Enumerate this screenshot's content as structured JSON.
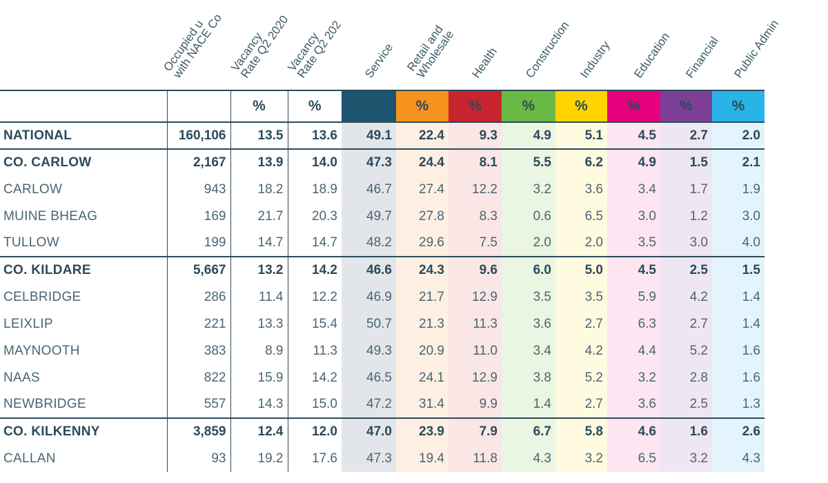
{
  "colors": {
    "header_text": "#3b5a68",
    "rule": "#2b4a5a",
    "service": "#1d5570",
    "retail": "#f7921e",
    "health": "#c8242f",
    "construction": "#6ab945",
    "industry": "#ffd400",
    "education": "#e6007e",
    "financial": "#7d3f96",
    "public_admin": "#29b4e8"
  },
  "columns": [
    {
      "key": "occupied",
      "label": "Occupied u\nwith NACE Co",
      "unit": ""
    },
    {
      "key": "vac2020",
      "label": "Vacancy\nRate Q2 2020",
      "unit": "%"
    },
    {
      "key": "vac2021",
      "label": "Vacancy\nRate Q2 202",
      "unit": "%"
    },
    {
      "key": "service",
      "label": "Service",
      "unit": "%"
    },
    {
      "key": "retail",
      "label": "Retail and\nWholesale",
      "unit": "%"
    },
    {
      "key": "health",
      "label": "Health",
      "unit": "%"
    },
    {
      "key": "construction",
      "label": "Construction",
      "unit": "%"
    },
    {
      "key": "industry",
      "label": "Industry",
      "unit": "%"
    },
    {
      "key": "education",
      "label": "Education",
      "unit": "%"
    },
    {
      "key": "financial",
      "label": "Financial",
      "unit": "%"
    },
    {
      "key": "public_admin",
      "label": "Public Admin",
      "unit": "%"
    }
  ],
  "rows": [
    {
      "name": "NATIONAL",
      "values": [
        "160,106",
        "13.5",
        "13.6",
        "49.1",
        "22.4",
        "9.3",
        "4.9",
        "5.1",
        "4.5",
        "2.7",
        "2.0"
      ]
    },
    {
      "name": "CO. CARLOW",
      "values": [
        "2,167",
        "13.9",
        "14.0",
        "47.3",
        "24.4",
        "8.1",
        "5.5",
        "6.2",
        "4.9",
        "1.5",
        "2.1"
      ]
    },
    {
      "name": "CARLOW",
      "values": [
        "943",
        "18.2",
        "18.9",
        "46.7",
        "27.4",
        "12.2",
        "3.2",
        "3.6",
        "3.4",
        "1.7",
        "1.9"
      ]
    },
    {
      "name": "MUINE BHEAG",
      "values": [
        "169",
        "21.7",
        "20.3",
        "49.7",
        "27.8",
        "8.3",
        "0.6",
        "6.5",
        "3.0",
        "1.2",
        "3.0"
      ]
    },
    {
      "name": "TULLOW",
      "values": [
        "199",
        "14.7",
        "14.7",
        "48.2",
        "29.6",
        "7.5",
        "2.0",
        "2.0",
        "3.5",
        "3.0",
        "4.0"
      ]
    },
    {
      "name": "CO. KILDARE",
      "values": [
        "5,667",
        "13.2",
        "14.2",
        "46.6",
        "24.3",
        "9.6",
        "6.0",
        "5.0",
        "4.5",
        "2.5",
        "1.5"
      ]
    },
    {
      "name": "CELBRIDGE",
      "values": [
        "286",
        "11.4",
        "12.2",
        "46.9",
        "21.7",
        "12.9",
        "3.5",
        "3.5",
        "5.9",
        "4.2",
        "1.4"
      ]
    },
    {
      "name": "LEIXLIP",
      "values": [
        "221",
        "13.3",
        "15.4",
        "50.7",
        "21.3",
        "11.3",
        "3.6",
        "2.7",
        "6.3",
        "2.7",
        "1.4"
      ]
    },
    {
      "name": "MAYNOOTH",
      "values": [
        "383",
        "8.9",
        "11.3",
        "49.3",
        "20.9",
        "11.0",
        "3.4",
        "4.2",
        "4.4",
        "5.2",
        "1.6"
      ]
    },
    {
      "name": "NAAS",
      "values": [
        "822",
        "15.9",
        "14.2",
        "46.5",
        "24.1",
        "12.9",
        "3.8",
        "5.2",
        "3.2",
        "2.8",
        "1.6"
      ]
    },
    {
      "name": "NEWBRIDGE",
      "values": [
        "557",
        "14.3",
        "15.0",
        "47.2",
        "31.4",
        "9.9",
        "1.4",
        "2.7",
        "3.6",
        "2.5",
        "1.3"
      ]
    },
    {
      "name": "CO. KILKENNY",
      "values": [
        "3,859",
        "12.4",
        "12.0",
        "47.0",
        "23.9",
        "7.9",
        "6.7",
        "5.8",
        "4.6",
        "1.6",
        "2.6"
      ]
    },
    {
      "name": "CALLAN",
      "values": [
        "93",
        "19.2",
        "17.6",
        "47.3",
        "19.4",
        "11.8",
        "4.3",
        "3.2",
        "6.5",
        "3.2",
        "4.3"
      ]
    }
  ]
}
